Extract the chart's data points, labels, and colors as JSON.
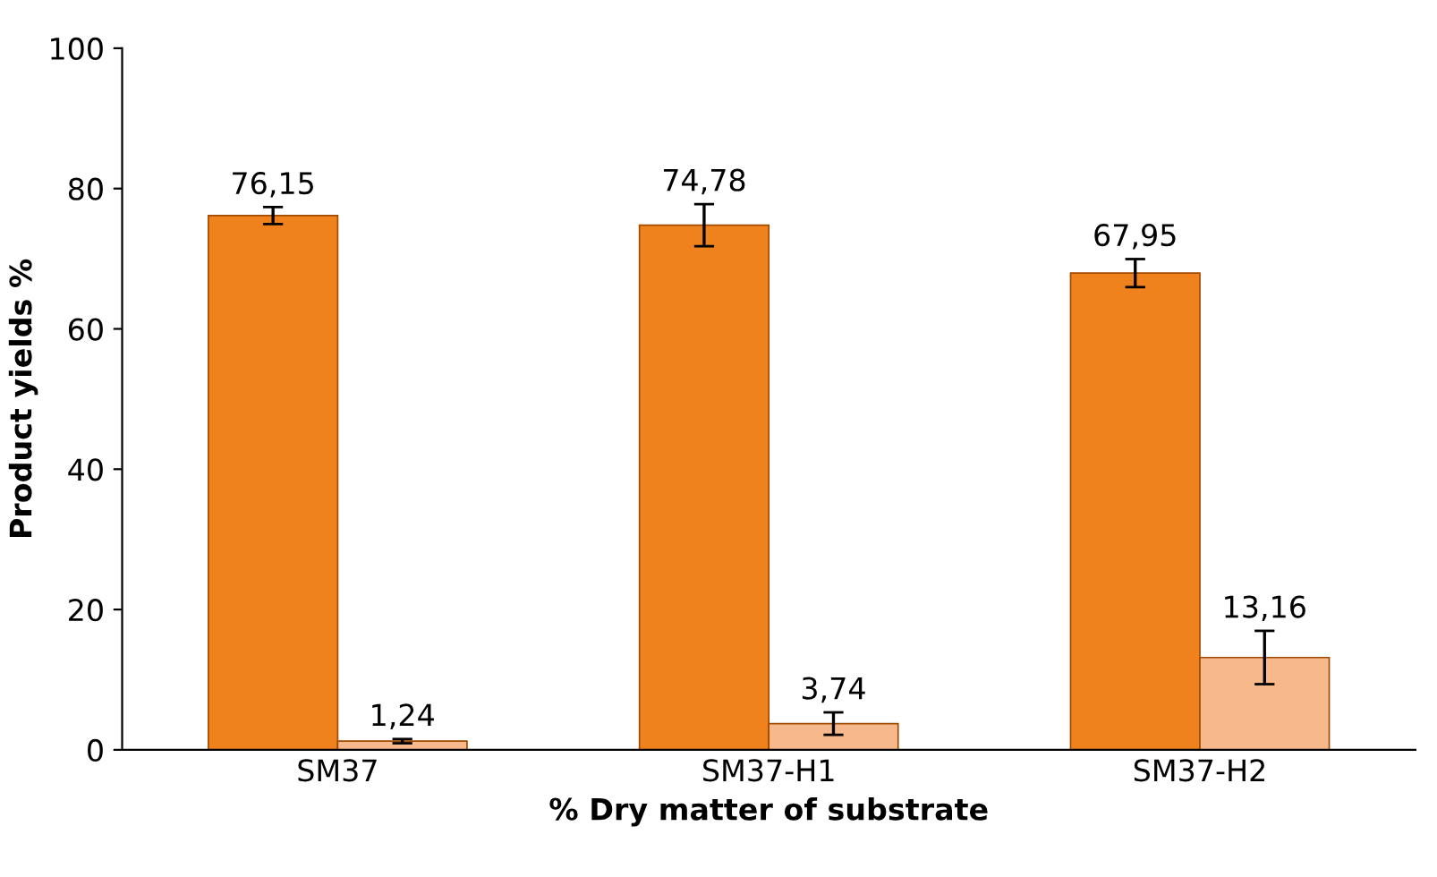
{
  "chart_data": {
    "type": "bar",
    "xlabel": "% Dry matter of substrate",
    "ylabel": "Product yields %",
    "categories": [
      "SM37",
      "SM37-H1",
      "SM37-H2"
    ],
    "series": [
      {
        "color": "#f0821e",
        "values": [
          76.15,
          74.78,
          67.95
        ],
        "errors": [
          1.2,
          3.0,
          2.0
        ],
        "value_labels": [
          "76,15",
          "74,78",
          "67,95"
        ]
      },
      {
        "color": "#f7b98c",
        "values": [
          1.24,
          3.74,
          13.16
        ],
        "errors": [
          0.3,
          1.6,
          3.8
        ],
        "value_labels": [
          "1,24",
          "3,74",
          "13,16"
        ]
      }
    ],
    "ylim": [
      0,
      100
    ],
    "yticks": [
      0,
      20,
      40,
      60,
      80,
      100
    ],
    "grid": false,
    "legend": false
  }
}
